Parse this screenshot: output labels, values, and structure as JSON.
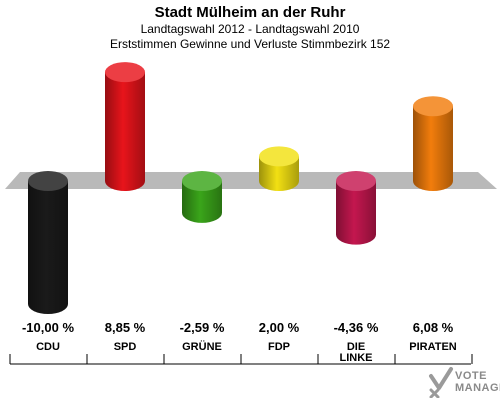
{
  "chart_data": {
    "type": "bar",
    "title": "Stadt Mülheim an der Ruhr",
    "subtitle": [
      "Landtagswahl 2012 - Landtagswahl 2010",
      "Erststimmen Gewinne und Verluste Stimmbezirk 152"
    ],
    "categories": [
      "CDU",
      "SPD",
      "GRÜNE",
      "FDP",
      "DIE\nLINKE",
      "PIRATEN"
    ],
    "values": [
      -10.0,
      8.85,
      -2.59,
      2.0,
      -4.36,
      6.08
    ],
    "value_labels": [
      "-10,00 %",
      "8,85 %",
      "-2,59 %",
      "2,00 %",
      "-4,36 %",
      "6,08 %"
    ],
    "colors": [
      "#1a1a1a",
      "#e8141b",
      "#3aa51a",
      "#f2e013",
      "#c4174f",
      "#f27d0c"
    ],
    "grid": false,
    "legend": "none"
  },
  "watermark": {
    "line1": "VOTE",
    "line2": "MANAGER"
  }
}
